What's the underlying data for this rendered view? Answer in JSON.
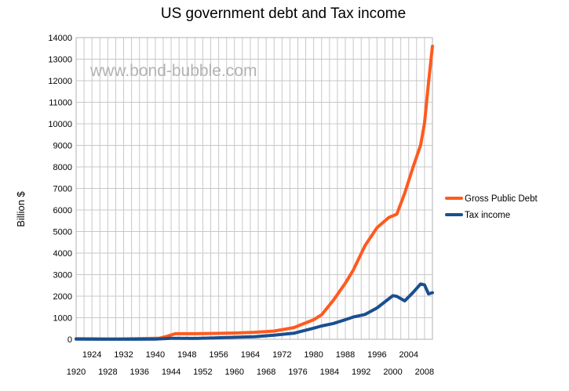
{
  "chart_data": {
    "type": "line",
    "title": "US government debt and Tax income",
    "watermark": "www.bond-bubble.com",
    "xlabel": "",
    "ylabel": "Billion $",
    "xlim": [
      1920,
      2010
    ],
    "ylim": [
      0,
      14000
    ],
    "y_ticks": [
      0,
      1000,
      2000,
      3000,
      4000,
      5000,
      6000,
      7000,
      8000,
      9000,
      10000,
      11000,
      12000,
      13000,
      14000
    ],
    "x_ticks_upper": [
      "1924",
      "1932",
      "1940",
      "1948",
      "1956",
      "1964",
      "1972",
      "1980",
      "1988",
      "1996",
      "2004"
    ],
    "x_ticks_lower": [
      "1920",
      "1928",
      "1936",
      "1944",
      "1952",
      "1960",
      "1968",
      "1976",
      "1984",
      "1992",
      "2000",
      "2008"
    ],
    "grid": true,
    "legend_position": "right",
    "series": [
      {
        "name": "Gross Public Debt",
        "color": "#ff5a1f",
        "x": [
          1920,
          1925,
          1930,
          1935,
          1940,
          1941,
          1943,
          1945,
          1950,
          1955,
          1960,
          1965,
          1970,
          1975,
          1980,
          1982,
          1985,
          1988,
          1990,
          1993,
          1996,
          1999,
          2001,
          2003,
          2005,
          2007,
          2008,
          2009,
          2010
        ],
        "values": [
          24,
          21,
          16,
          29,
          43,
          49,
          137,
          260,
          257,
          274,
          291,
          322,
          381,
          542,
          909,
          1137,
          1817,
          2602,
          3206,
          4351,
          5181,
          5656,
          5807,
          6783,
          7933,
          9008,
          10025,
          11910,
          13600
        ]
      },
      {
        "name": "Tax income",
        "color": "#1a4f8f",
        "x": [
          1920,
          1925,
          1930,
          1935,
          1940,
          1944,
          1945,
          1950,
          1955,
          1960,
          1965,
          1970,
          1975,
          1980,
          1982,
          1985,
          1988,
          1990,
          1993,
          1996,
          2000,
          2001,
          2003,
          2005,
          2007,
          2008,
          2009,
          2010
        ],
        "values": [
          7,
          4,
          4,
          4,
          7,
          43,
          45,
          39,
          66,
          93,
          117,
          193,
          279,
          517,
          618,
          734,
          909,
          1032,
          1154,
          1453,
          2025,
          1991,
          1782,
          2154,
          2568,
          2524,
          2105,
          2163
        ]
      }
    ]
  }
}
